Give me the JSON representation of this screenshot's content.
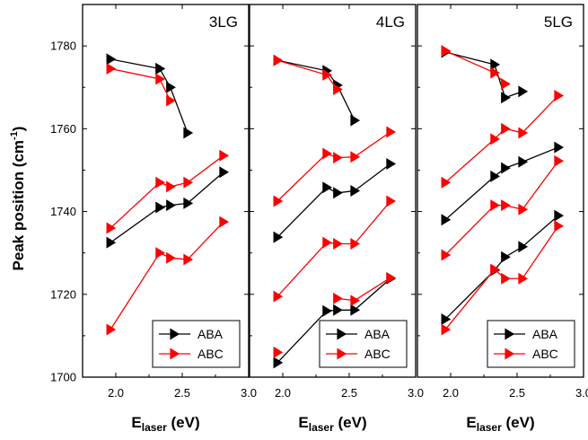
{
  "ylabel": "Peak position (cm",
  "ylabel_sup": "-1",
  "ylabel_close": ")",
  "xlabel_main": "E",
  "xlabel_sub": "laser",
  "xlabel_unit": " (eV)",
  "colors": {
    "ABA": "#000000",
    "ABC": "#ff0000"
  },
  "chart_data": [
    {
      "type": "line",
      "title": "3LG",
      "xlim": [
        1.75,
        3.0
      ],
      "ylim": [
        1700,
        1790
      ],
      "x_ticks": [
        "2.0",
        "2.5",
        "3.0"
      ],
      "y_ticks": [
        "1700",
        "1720",
        "1740",
        "1760",
        "1780"
      ],
      "x_tick_values": [
        2.0,
        2.5,
        3.0
      ],
      "y_tick_values": [
        1700,
        1720,
        1740,
        1760,
        1780
      ],
      "legend": [
        "ABA",
        "ABC"
      ],
      "series": [
        {
          "name": "ABA",
          "x": [
            1.96,
            2.33
          ],
          "y": [
            1776.8,
            1774.5
          ]
        },
        {
          "name": "ABA",
          "x": [
            2.33,
            2.41,
            2.54
          ],
          "y": [
            1774.5,
            1770.0,
            1759.0
          ]
        },
        {
          "name": "ABA",
          "x": [
            1.96,
            2.33,
            2.41,
            2.54,
            2.81
          ],
          "y": [
            1732.5,
            1741.0,
            1741.5,
            1742.0,
            1749.5
          ]
        },
        {
          "name": "ABC",
          "x": [
            1.96,
            2.33,
            2.41
          ],
          "y": [
            1774.5,
            1772.0,
            1766.8
          ]
        },
        {
          "name": "ABC",
          "x": [
            1.96,
            2.33,
            2.41,
            2.54,
            2.81
          ],
          "y": [
            1736.0,
            1747.0,
            1746.0,
            1747.0,
            1753.5
          ]
        },
        {
          "name": "ABC",
          "x": [
            1.96,
            2.33,
            2.41,
            2.54,
            2.81
          ],
          "y": [
            1711.5,
            1730.0,
            1728.8,
            1728.4,
            1737.5
          ]
        }
      ]
    },
    {
      "type": "line",
      "title": "4LG",
      "xlim": [
        1.75,
        3.0
      ],
      "ylim": [
        1700,
        1790
      ],
      "x_ticks": [
        "2.0",
        "2.5",
        "3.0"
      ],
      "y_ticks": [],
      "x_tick_values": [
        2.0,
        2.5,
        3.0
      ],
      "y_tick_values": [
        1700,
        1720,
        1740,
        1760,
        1780
      ],
      "legend": [
        "ABA",
        "ABC"
      ],
      "series": [
        {
          "name": "ABA",
          "x": [
            1.96,
            2.33,
            2.41,
            2.54
          ],
          "y": [
            1776.5,
            1774.0,
            1770.5,
            1762.0
          ]
        },
        {
          "name": "ABA",
          "x": [
            1.96,
            2.33,
            2.41,
            2.54,
            2.81
          ],
          "y": [
            1733.8,
            1745.8,
            1744.5,
            1745.0,
            1751.5
          ]
        },
        {
          "name": "ABA",
          "x": [
            1.96,
            2.33,
            2.41,
            2.54,
            2.81
          ],
          "y": [
            1703.5,
            1716.0,
            1716.2,
            1716.2,
            1723.8
          ]
        },
        {
          "name": "ABC",
          "x": [
            1.96,
            2.33,
            2.41
          ],
          "y": [
            1776.5,
            1773.0,
            1769.5
          ]
        },
        {
          "name": "ABC",
          "x": [
            1.96,
            2.33,
            2.41,
            2.54,
            2.81
          ],
          "y": [
            1742.5,
            1754.0,
            1753.0,
            1753.2,
            1759.2
          ]
        },
        {
          "name": "ABC",
          "x": [
            1.96,
            2.33,
            2.41,
            2.54,
            2.81
          ],
          "y": [
            1719.5,
            1732.5,
            1732.2,
            1732.2,
            1742.5
          ]
        },
        {
          "name": "ABC",
          "x": [
            1.96
          ],
          "y": [
            1706.0
          ]
        },
        {
          "name": "ABC",
          "x": [
            2.41,
            2.54,
            2.81
          ],
          "y": [
            1719.0,
            1718.5,
            1724.0
          ]
        }
      ]
    },
    {
      "type": "line",
      "title": "5LG",
      "xlim": [
        1.75,
        3.0
      ],
      "ylim": [
        1700,
        1790
      ],
      "x_ticks": [
        "2.0",
        "2.5",
        "3.0"
      ],
      "y_ticks": [],
      "x_tick_values": [
        2.0,
        2.5,
        3.0
      ],
      "y_tick_values": [
        1700,
        1720,
        1740,
        1760,
        1780
      ],
      "legend": [
        "ABA",
        "ABC"
      ],
      "series": [
        {
          "name": "ABA",
          "x": [
            1.96,
            2.33,
            2.41,
            2.54
          ],
          "y": [
            1778.5,
            1775.5,
            1767.5,
            1769.0
          ]
        },
        {
          "name": "ABA",
          "x": [
            1.96,
            2.33,
            2.41,
            2.54,
            2.81
          ],
          "y": [
            1738.0,
            1748.5,
            1750.5,
            1752.0,
            1755.5
          ]
        },
        {
          "name": "ABA",
          "x": [
            1.96,
            2.33,
            2.41,
            2.54,
            2.81
          ],
          "y": [
            1714.0,
            1725.8,
            1729.0,
            1731.5,
            1739.0
          ]
        },
        {
          "name": "ABC",
          "x": [
            1.96,
            2.33,
            2.41
          ],
          "y": [
            1778.8,
            1773.5,
            1770.8
          ]
        },
        {
          "name": "ABC",
          "x": [
            1.96,
            2.33,
            2.41,
            2.54,
            2.81
          ],
          "y": [
            1747.0,
            1757.5,
            1760.0,
            1759.0,
            1768.0
          ]
        },
        {
          "name": "ABC",
          "x": [
            1.96,
            2.33,
            2.41,
            2.54,
            2.81
          ],
          "y": [
            1729.5,
            1741.5,
            1741.5,
            1740.5,
            1752.2
          ]
        },
        {
          "name": "ABC",
          "x": [
            1.96,
            2.33,
            2.41,
            2.54,
            2.81
          ],
          "y": [
            1711.5,
            1726.0,
            1723.8,
            1723.8,
            1736.5
          ]
        }
      ]
    }
  ]
}
